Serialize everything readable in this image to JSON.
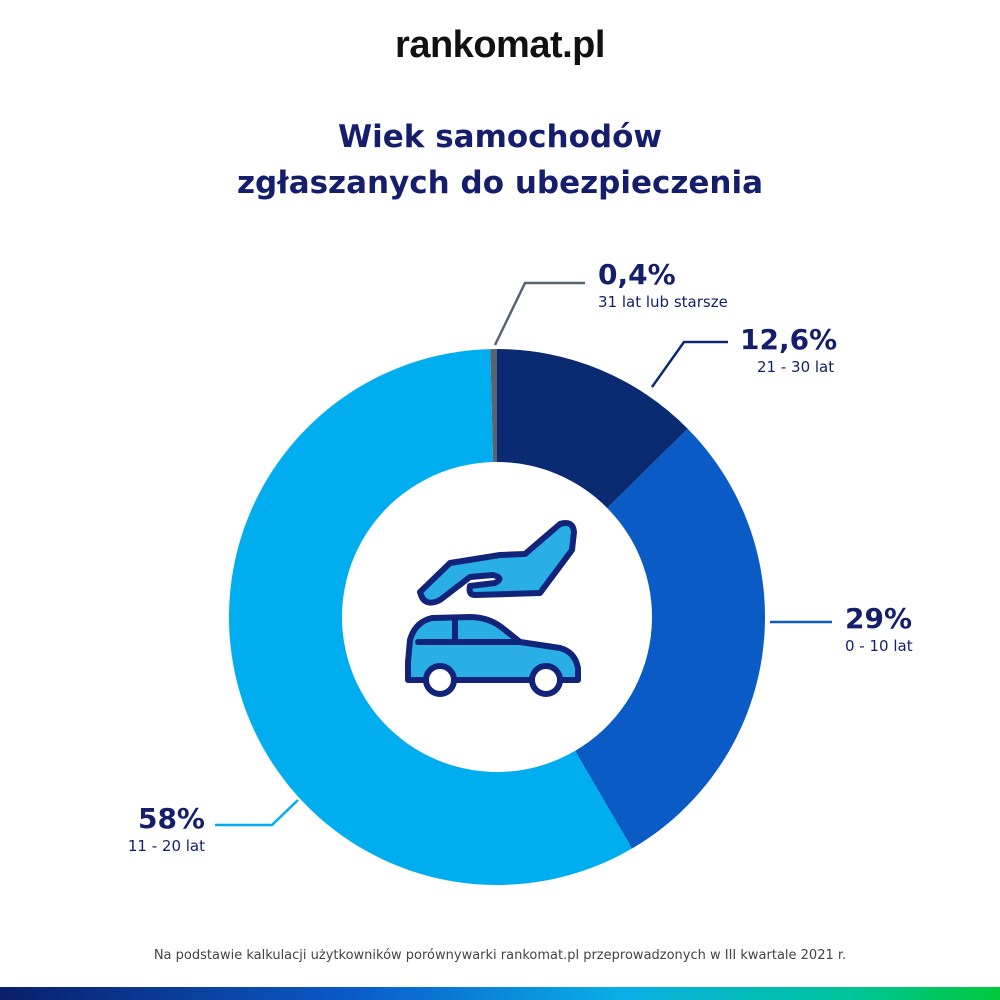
{
  "logo": {
    "text": "rankomat.pl"
  },
  "title": {
    "line1": "Wiek samochodów",
    "line2": "zgłaszanych do ubezpieczenia"
  },
  "chart_data": {
    "type": "pie",
    "donut": true,
    "start": "top",
    "direction": "clockwise",
    "slices": [
      {
        "value": 12.6,
        "label": "12,6%",
        "category": "21 - 30 lat",
        "color": "#0a2a72"
      },
      {
        "value": 29,
        "label": "29%",
        "category": "0 - 10 lat",
        "color": "#0a5bc6"
      },
      {
        "value": 58,
        "label": "58%",
        "category": "11 - 20 lat",
        "color": "#00aeef"
      },
      {
        "value": 0.4,
        "label": "0,4%",
        "category": "31 lat lub starsze",
        "color": "#5a6470"
      }
    ],
    "center_icon": "hand-over-car-icon"
  },
  "footnote": "Na podstawie kalkulacji użytkowników porównywarki rankomat.pl przeprowadzonych w III kwartale 2021 r."
}
